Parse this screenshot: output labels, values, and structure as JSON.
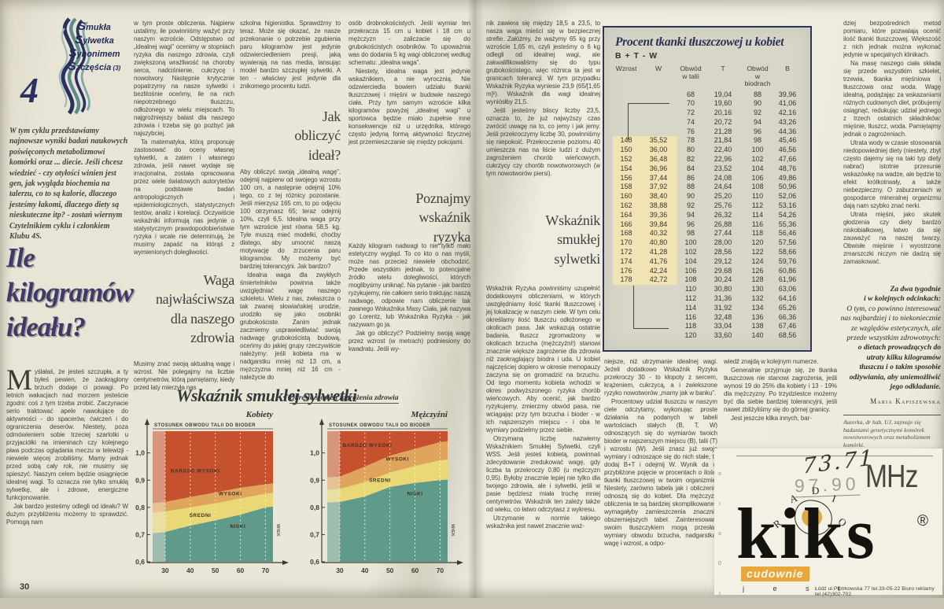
{
  "left_page": {
    "page_number": "30",
    "logo": {
      "number": "4",
      "series_lines": [
        "Smukła",
        "Sylwetka",
        "Synonimem",
        "Szczęścia"
      ],
      "issue": "(3)"
    },
    "intro": "W tym cyklu przedstawiamy najnowsze wyniki badań naukowych poświęconych metabolizmowi komórki oraz ... diecie. Jeśli chcesz wiedzieć - czy otyłości winien jest gen, jak wygląda biochemia na talerzu, co to są kalorie, dlaczego jesteśmy łakomi, dlaczego diety są nieskuteczne itp? - zostań wiernym Czytelnikiem cyklu i członkiem Klubu 4S.",
    "title": "Ile kilogramów ideału?",
    "col1": {
      "p1": "Myślałaś, że jesteś szczupła, a ty byłeś pewien, że zaokrąglony brzuch dodaje ci powagi. Po letnich wakacjach nad morzem jesteście zgodni: coś z tym trzeba zrobić. Zaczynacie serio traktować apele nawołujące do aktywności - do spacerów, ćwiczeń i do ograniczenia deserów. Niestety, poza odmówieniem sobie trzeciej szarlotki u przyjaciółki na imieninach czy kolejnego piwa podczas oglądania meczu w telewizji - niewiele więcej zrobiliśmy. Mamy jednak przed sobą cały rok, nie musimy się spieszyć. Naszym celem będzie osiągnięcie idealnej wagi. To oznacza nie tylko smukłą sylwetkę, ale i zdrowe, energiczne funkcjonowanie.",
      "p2": "Jak bardzo jesteśmy odlegli od ideału? W dużym przybliżeniu możemy to sprawdzić. Pomogą nam"
    },
    "col2": {
      "p1": "w tym proste obliczenia. Najpierw ustalimy, ile powinniśmy ważyć przy naszym wzroście. Odstępstwo od „idealnej wagi” ocenimy w stopniach ryzyka dla naszego zdrowia, czyli zwiększoną wrażliwość na choroby serca, nadciśnienie, cukrzycę i nowotwory. Następnie krytycznie popatrzymy na nasze sylwetki i bezlitośnie oceńmy, ile na nich niepotrzebnego tłuszczu, odłożonego w wielu miejscach. To najgroźniejszy balast dla naszego zdrowia i trzeba się go pozbyć jak najszybciej.",
      "p2": "Ta matematyka, którą proponuję zastosować do oceny własnej sylwetki, a zatem i własnego zdrowia, jeśli nawet wydaje się irracjonalna, została opracowana przez wiele światowych autorytetów na podstawie badań antropologicznych i epidemiologicznych, statystycznych testów, analiz i korelacji. Oczywiście wskaźniki informują nas jedynie o statystycznym prawdopodobieństwie ryzyka i wcale nie determinują, że musimy zapaść na którąś z wymienionych dolegliwości.",
      "heading": "Waga\nnajwłaściwsza\ndla naszego\nzdrowia",
      "p3": "Musimy znać swoją aktualną wagę i wzrost. Nie polegajmy na liczbie centymetrów, którą pamiętamy, kiedy przed laty mierzyła nas"
    },
    "col3": {
      "p1": "szkolna higienistka. Sprawdźmy to teraz. Może się okazać, że nasze przekonanie o potrzebie zgubienia paru kilogramów jest jedynie odzwierciedleniem presji, jaką wywierają na nas media, lansując model bardzo szczupłej sylwetki. A ten - właściwy jest jedynie dla znikomego procentu ludzi.",
      "heading": "Jak\nobliczyć\nideał?",
      "p2": "Aby obliczyć swoją „idealną wagę”, odejmij najpierw od swojego wzrostu 100 cm, a następnie odejmij 10% tego, co z tej różnicy pozostanie. Jeśli mierzysz 165 cm, to po odjęciu 100 otrzymasz 65; teraz odejmij 10%, czyli 6,5. Idealna waga przy tym wzroście jest równa 58,5 kg. Tyle muszą mieć modelki, choćby dlatego, aby umocnić naszą motywację do zrzucenia paru kilogramów. My możemy być bardziej tolerancyjni. Jak bardzo?",
      "p3": "Idealna waga dla zwykłych śmiertelników powinna także uwzględniać wagę naszego szkieletu. Wielu z nas, zwłaszcza o tak zwanej słowiańskiej urodzie, urodziło się jako osobniki grubokościste. Zanim jednak zaczniemy usprawiedliwiać swoją nadwagę grubokościstą budową, oceńmy do jakiej grupy rzeczywiście należymy: jeśli kobieta ma w nadgarstku mniej niż 13 cm, a mężczyzna mniej niż 16 cm - należycie do"
    },
    "col4": {
      "p1": "osób drobnokościstych. Jeśli wymiar ten przekracza 15 cm u kobiet i 18 cm u mężczyzn - zaliczacie się do grubokościstych osobników. To upoważnia was do dodania 5 kg wagi obliczonej według schematu: „idealna waga”.",
      "p2": "Niestety, idealna waga jest jedynie wskaźnikiem, a nie wyrocznią. Nie odzwierciedla bowiem udziału tkanki tłuszczowej i mięśni w budowie naszego ciała. Przy tym samym wzroście kilka kilogramów powyżej „idealnej wagi” u sportowca będzie miało zupełnie inne konsekwencje niż u urzędnika, którego często jedyną formą aktywności fizycznej jest przemieszczanie się między pokojami.",
      "heading": "Poznajmy\nwskaźnik\nryzyka",
      "p3": "Każdy kilogram nadwagi to nie tylko mało estetyczny wygląd. To co kto o nas myśli, może nas przecież niewiele obchodzić. Przede wszystkim jednak, to potencjalne źródło wielu dolegliwości, których moglibyśmy uniknąć. Na pytanie - jak bardzo ryzykujemy, nie całkiem serio traktując naszą nadwagę, odpowie nam obliczenie tak zwanego Wskaźnika Masy Ciała, jak nazywa go Lorentz, lub Wskaźnika Ryzyka - jak nazywam go ja.",
      "p4": "Jak go obliczyć? Podzielmy swoją wagę przez wzrost (w metrach) podniesiony do kwadratu. Jeśli wy-"
    }
  },
  "chart_block": {
    "title": "Wskaźnik smukłej sylwetki",
    "subtitle": "Określa stopień zagrożenia zdrowia"
  },
  "chart_data": [
    {
      "type": "area",
      "title": "Wskaźnik smukłej sylwetki",
      "subtitle": "Określa stopień zagrożenia zdrowia",
      "group": "Kobiety",
      "axis_title": "STOSUNEK OBWODU TALII DO BIODER",
      "xlabel": "WIEK",
      "xlim": [
        25,
        73
      ],
      "ylim": [
        0.6,
        1.08
      ],
      "x": [
        25,
        30,
        40,
        50,
        60,
        70,
        73
      ],
      "x_ticks": [
        30,
        40,
        50,
        60,
        70
      ],
      "y_ticks": [
        {
          "v": 1.0,
          "label": "1,0"
        },
        {
          "v": 0.9,
          "label": "0,9"
        },
        {
          "v": 0.8,
          "label": "0,8"
        },
        {
          "v": 0.7,
          "label": "0,7"
        },
        {
          "v": 0.6,
          "label": "0,6"
        }
      ],
      "zones": [
        {
          "name": "NISKI",
          "color": "#5f9a8b",
          "top": [
            0.705,
            0.71,
            0.733,
            0.752,
            0.773,
            0.8,
            0.803
          ],
          "label": [
            59,
            0.725
          ]
        },
        {
          "name": "ŚREDNI",
          "color": "#e9d876",
          "top": [
            0.78,
            0.785,
            0.8,
            0.815,
            0.833,
            0.85,
            0.853
          ],
          "label": [
            44,
            0.765
          ]
        },
        {
          "name": "WYSOKI",
          "color": "#e0a55c",
          "top": [
            0.815,
            0.82,
            0.838,
            0.855,
            0.872,
            0.885,
            0.888
          ],
          "label": [
            56,
            0.845
          ]
        },
        {
          "name": "BARDZO WYSOKI",
          "color": "#c6512f",
          "top": null,
          "label": [
            42,
            0.928
          ]
        }
      ]
    },
    {
      "type": "area",
      "title": "Wskaźnik smukłej sylwetki",
      "subtitle": "Określa stopień zagrożenia zdrowia",
      "group": "Mężczyźni",
      "axis_title": "STOSUNEK OBWODU TALII DO BIODER",
      "xlabel": "WIEK",
      "xlim": [
        25,
        73
      ],
      "ylim": [
        0.6,
        1.08
      ],
      "x": [
        25,
        30,
        40,
        50,
        60,
        70,
        73
      ],
      "x_ticks": [
        30,
        40,
        50,
        60,
        70
      ],
      "y_ticks": [
        {
          "v": 1.0,
          "label": "1,0"
        },
        {
          "v": 0.9,
          "label": "0,9"
        },
        {
          "v": 0.8,
          "label": "0,8"
        },
        {
          "v": 0.7,
          "label": "0,7"
        },
        {
          "v": 0.6,
          "label": "0,6"
        }
      ],
      "zones": [
        {
          "name": "NISKI",
          "color": "#5f9a8b",
          "top": [
            0.818,
            0.82,
            0.84,
            0.875,
            0.89,
            0.9,
            0.902
          ],
          "label": [
            60,
            0.845
          ]
        },
        {
          "name": "ŚREDNI",
          "color": "#e9d876",
          "top": [
            0.865,
            0.868,
            0.893,
            0.928,
            0.952,
            0.973,
            0.976
          ],
          "label": [
            46,
            0.893
          ]
        },
        {
          "name": "WYSOKI",
          "color": "#e0a55c",
          "top": [
            0.91,
            0.913,
            0.95,
            0.99,
            1.015,
            1.04,
            1.043
          ],
          "label": [
            53,
            0.972
          ]
        },
        {
          "name": "BARDZO WYSOKI",
          "color": "#c6512f",
          "top": null,
          "label": [
            41,
            1.022
          ]
        }
      ]
    }
  ],
  "right_page": {
    "col1": {
      "p1": "nik zawiera się między 18,5 a 23,5, to nasza waga mieści się w bezpiecznej strefie. Załóżmy, że ważymy 65 kg przy wzroście 1,65 m, czyli jesteśmy o 6 kg odlegli od idealnej wagi, ale zakwalifikowaliśmy się do typu grubokościstego, więc różnica ta jest w granicach tolerancji. W tym przypadku Wskaźnik Ryzyka wyniesie 23,9 (65/[1,65 m]²). Wskaźnik dla wagi idealnej wyniósłby 21,5.",
      "p2": "Jeśli jesteśmy bliscy liczby 23,5, oznacza to, że już najwyższy czas zwrócić uwagę na to, co jemy i jak jemy. Jeśli przekroczymy liczbę 30, powinniśmy się niepokoić. Przekroczenie poziomu 40 umieszcza nas na liście ludzi z dużym zagrożeniem chorób wieńcowych, cukrzycy czy chorób nowotworowych (w tym nowotworów piersi).",
      "heading": "Wskaźnik\nsmukłej\nsylwetki",
      "p3": "Wskaźnik Ryzyka powinniśmy uzupełnić dodatkowymi obliczeniami, w których uwzględniamy ilość tkanki tłuszczowej i jej lokalizację w naszym ciele. W tym celu określamy ilość tłuszczu odłożonego w okolicach pasa. Jak wskazują ostatnie badania, tłuszcz zgromadzony w okolicach brzucha (mężczyźni!) stanowi znacznie większe zagrożenie dla zdrowia niż zaokrąglający biodra i uda. U kobiet najczęściej dopiero w okresie menopauzy zaczyna się on gromadzić na brzuchu. Od tego momentu kobieta wchodzi w okres podwyższonego ryzyka chorób wieńcowych. Aby ocenić, jak bardzo ryzykujemy, zmierzmy obwód pasa, nie wciągając przy tym brzucha i bioder - w ich najszerszym miejscu - i oba te wymiary podzielmy przez siebie.",
      "p4": "Otrzymaną liczbę nazwiemy Wskaźnikiem Smukłej Sylwetki, czyli WSS. Jeśli jesteś kobietą, powinnaś zdecydowanie zredukować wagę, gdy liczba ta przekroczy 0,80 (u mężczyzn 0,95). Byłoby znacznie lepiej nie tylko dla twojego zdrowia, ale i sylwetki, jeśli w pasie będziesz miała trochę mniej centymetrów. Wskaźnik ten zależy także od wieku, co łatwo odczytasz z wykresu.",
      "p5": "Utrzymanie w normie takiego wskaźnika jest nawet znacznie waż-"
    },
    "table": {
      "title": "Procent tkanki tłuszczowej u kobiet",
      "formula": "B + T - W",
      "headers": [
        "Wzrost",
        "W",
        "Obwód\nw talii",
        "T",
        "Obwód\nw biodrach",
        "B"
      ],
      "rows": [
        [
          "",
          "",
          "68",
          "19,04",
          "88",
          "39,96"
        ],
        [
          "",
          "",
          "70",
          "19,60",
          "90",
          "41,06"
        ],
        [
          "",
          "",
          "72",
          "20,16",
          "92",
          "42,16"
        ],
        [
          "",
          "",
          "74",
          "20,72",
          "94",
          "43,26"
        ],
        [
          "",
          "",
          "76",
          "21,28",
          "96",
          "44,36"
        ],
        [
          "148",
          "35,52",
          "78",
          "21,84",
          "98",
          "45,46"
        ],
        [
          "150",
          "36,00",
          "80",
          "22,40",
          "100",
          "46,56"
        ],
        [
          "152",
          "36,48",
          "82",
          "22,96",
          "102",
          "47,66"
        ],
        [
          "154",
          "36,96",
          "84",
          "23,52",
          "104",
          "48,76"
        ],
        [
          "156",
          "37,44",
          "86",
          "24,08",
          "106",
          "49,86"
        ],
        [
          "158",
          "37,92",
          "88",
          "24,64",
          "108",
          "50,96"
        ],
        [
          "160",
          "38,40",
          "90",
          "25,20",
          "110",
          "52,06"
        ],
        [
          "162",
          "38,88",
          "92",
          "25,76",
          "112",
          "53,16"
        ],
        [
          "164",
          "39,36",
          "94",
          "26,32",
          "114",
          "54,26"
        ],
        [
          "166",
          "39,84",
          "96",
          "26,88",
          "116",
          "55,36"
        ],
        [
          "168",
          "40,32",
          "98",
          "27,44",
          "118",
          "56,46"
        ],
        [
          "170",
          "40,80",
          "100",
          "28,00",
          "120",
          "57,56"
        ],
        [
          "172",
          "41,28",
          "102",
          "28,56",
          "122",
          "58,66"
        ],
        [
          "174",
          "41,76",
          "104",
          "29,12",
          "124",
          "59,76"
        ],
        [
          "176",
          "42,24",
          "106",
          "29,68",
          "126",
          "60,86"
        ],
        [
          "178",
          "42,72",
          "108",
          "30,24",
          "128",
          "61,96"
        ],
        [
          "",
          "",
          "110",
          "30,80",
          "130",
          "63,06"
        ],
        [
          "",
          "",
          "112",
          "31,36",
          "132",
          "64,16"
        ],
        [
          "",
          "",
          "114",
          "31,92",
          "134",
          "65,26"
        ],
        [
          "",
          "",
          "116",
          "32,48",
          "136",
          "66,36"
        ],
        [
          "",
          "",
          "118",
          "33,04",
          "138",
          "67,46"
        ],
        [
          "",
          "",
          "120",
          "33,60",
          "140",
          "68,56"
        ]
      ]
    },
    "col2": {
      "p1": "niejsze, niż utrzymanie idealnej wagi. Jeżeli dodatkowo Wskaźnik Ryzyka przekroczy 30 - to kłopoty z sercem, krążeniem, cukrzycą, a i zwiekszone ryzyko nowotworów „mamy jak w banku”.",
      "p2": "Procentowy udział tłuszczu w naszym ciele odczytamy, wykonując proste działania na podanych w tabeli wartościach stałych (B, T, W) odnoszących się do wymiarów twoich bioder w najszerszym miejscu (B), talii (T) i wzrostu (W). Jeśli znasz już swoje wymiary i odnoszące się do nich stałe, to dodaj B+T i odejmij W. Wynik da ci przybliżone pojęcie w procentach o ilości tkanki tłuszczowej w twoim organizmie. Niestety, zarówno tabela jak i obliczenia odnoszą się do kobiet. Dla mężczyzn obliczenia te są bardziej skomplikowane i wymagałyby zamieszczenia znacznie obszerniejszych tabel. Zainteresowani swoim tłuszczykiem mogą przesłać wymiary obwodu brzucha, nadgarstka, wagę i wzrost, a odpo-"
    },
    "col3": {
      "p1": "wiedź znajdą w kolejnym numerze.",
      "p2": "Generalnie przyjmuje się, że tkanka tłuszczowa nie stanowi zagrożenia, jeśli wynosi 19 do 25% dla kobiety i 13 - 19% dla mężczyzny. Po trzydziestce możemy być dla siebie bardziej tolerancyjni, jeśli nawet zbliżyliśmy się do górnej granicy.",
      "p3": "Jest jeszcze kilka innych, bar-"
    },
    "col4": {
      "p1": "dziej bezpośrednich metod pomiaru, które pozwalają ocenić ilość tkanki tłuszczowej. Większość z nich jednak można wykonać jedynie w specjalnych klinikach.",
      "p2": "Na masę naszego ciała składa się przede wszystkim szkielet, trzewia, tkanka mięśniowa i tłuszczowa oraz woda. Wagę idealną, podążając za wskazaniami różnych cudownych diet, próbujemy osiągnąć, redukując udział jednego z trzech ostatnich składników: mięśnie, tłuszcz, woda. Pamiętajmy jednak o zagrożeniach.",
      "p3": "Utrata wody w czasie stosowania niedopowiedniej diety (niestety, zbyt często dajemy się na taki typ diety nabrać) istotnie przesunie wskazówkę na wadze, ale będzie to efekt krótkotrwały, a także niebezpieczny. O zaburzeniach w gospodarce mineralnej organizmu dają nam szybko znać nerki.",
      "p4": "Utrata mięśni, jako skutek głodzenia czy diety bardzo niskobiałkowej, łatwo da się zauważyć na naszej twarzy. Obwisłe mięśnie i wyostrzone zmarszczki niczym nie dadzą się zamaskować.",
      "promo_title": "Za dwa tygodnie\ni w kolejnych odcinkach:",
      "promo_body": "O tym, co powinno interesować nas najbardziej i to niekoniecznie ze względów estetycznych, ale przede wszystkim zdrowotnych:",
      "promo_emph": "o dietach prowadzących do utraty kilku kilogramów tłuszczu i o takim sposobie odżywiania, aby uniemożliwić jego odkładanie.",
      "author": "Maria Kapiszewska",
      "footnote": "Autorka, dr hab. UJ, zajmuje się badaniami genetycznymi komórek nowotworowych oraz metabolizmem komórki."
    },
    "ad": {
      "frequency_hand": "73.71",
      "frequency_print": "97.90",
      "unit": "MHz",
      "radio_letters": [
        "R",
        "A",
        "D",
        "I",
        "O"
      ],
      "brand": "kiks",
      "registered": "®",
      "tagline_highlight": "cudownie",
      "tagline_rest": "j e s t",
      "address": "Łódź ul.Piotrkowska 77 tel.33-05-22  Biuro reklamy tel.(42)302-702"
    }
  }
}
